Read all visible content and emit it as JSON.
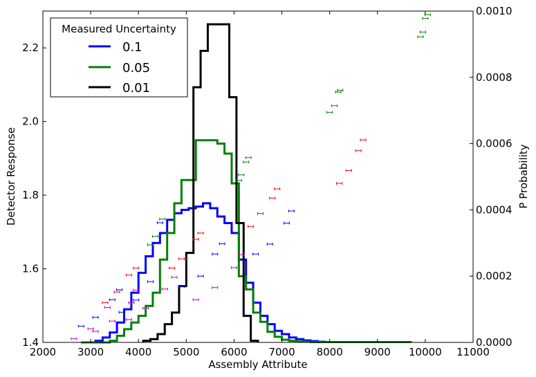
{
  "chart_data": {
    "type": "line",
    "title": "",
    "xlabel": "Assembly Attribute",
    "ylabel_left": "Detector Response",
    "ylabel_right": "P Probability",
    "xlim": [
      2000,
      11000
    ],
    "ylim_left": [
      1.4,
      2.3
    ],
    "ylim_right": [
      0,
      0.001
    ],
    "x_ticks": [
      2000,
      3000,
      4000,
      5000,
      6000,
      7000,
      8000,
      9000,
      10000,
      11000
    ],
    "y_left_ticks": [
      1.4,
      1.6,
      1.8,
      2.0,
      2.2
    ],
    "y_right_ticks": [
      0.0,
      0.0002,
      0.0004,
      0.0006,
      0.0008,
      0.001
    ],
    "x_tick_labels": [
      "2000",
      "3000",
      "4000",
      "5000",
      "6000",
      "7000",
      "8000",
      "9000",
      "10000",
      "11000"
    ],
    "y_left_tick_labels": [
      "1.4",
      "1.6",
      "1.8",
      "2.0",
      "2.2"
    ],
    "y_right_tick_labels": [
      "0.0000",
      "0.0002",
      "0.0004",
      "0.0006",
      "0.0008",
      "0.0010"
    ],
    "grid": false,
    "legend": {
      "title": "Measured Uncertainty",
      "position": "top-left",
      "entries": [
        {
          "label": "0.1",
          "color": "#0000ff"
        },
        {
          "label": "0.05",
          "color": "#008000"
        },
        {
          "label": "0.01",
          "color": "#000000"
        }
      ]
    },
    "series": [
      {
        "name": "0.1",
        "color": "#0000ff",
        "axis": "right",
        "style": "step",
        "bin_edges": [
          2800,
          2950,
          3100,
          3250,
          3400,
          3550,
          3700,
          3850,
          4000,
          4150,
          4300,
          4450,
          4600,
          4750,
          4900,
          5050,
          5200,
          5350,
          5500,
          5650,
          5800,
          5950,
          6100,
          6250,
          6400,
          6550,
          6700,
          6850,
          7000,
          7150,
          7300,
          7450,
          7600,
          7750,
          7900,
          8050
        ],
        "values": [
          0.0,
          0.0,
          5e-06,
          1.5e-05,
          3e-05,
          6e-05,
          0.0001,
          0.00015,
          0.00021,
          0.00026,
          0.0003,
          0.00033,
          0.00037,
          0.00039,
          0.0004,
          0.000405,
          0.00041,
          0.00042,
          0.000405,
          0.00038,
          0.00036,
          0.00033,
          0.00025,
          0.00018,
          0.00012,
          8e-05,
          5.5e-05,
          3.5e-05,
          2.5e-05,
          1.5e-05,
          1e-05,
          6e-06,
          4e-06,
          2e-06,
          1e-06
        ]
      },
      {
        "name": "0.05",
        "color": "#008000",
        "axis": "right",
        "style": "step",
        "bin_edges": [
          2800,
          3400,
          3550,
          3700,
          3850,
          4000,
          4150,
          4300,
          4450,
          4600,
          4750,
          4900,
          5050,
          5200,
          5350,
          5500,
          5650,
          5800,
          5950,
          6100,
          6250,
          6400,
          6550,
          6700,
          6850,
          7000,
          7150,
          7300,
          7450,
          7600,
          9700
        ],
        "values": [
          0.0,
          5e-06,
          2e-05,
          4e-05,
          6e-05,
          8e-05,
          0.00011,
          0.00015,
          0.00025,
          0.00033,
          0.00042,
          0.00049,
          0.00049,
          0.00061,
          0.00061,
          0.00061,
          0.0006,
          0.00057,
          0.00048,
          0.0002,
          0.00016,
          9e-05,
          6.2e-05,
          3.2e-05,
          1.7e-05,
          8e-06,
          5e-06,
          3e-06,
          2e-06,
          1e-06
        ]
      },
      {
        "name": "0.01",
        "color": "#000000",
        "axis": "right",
        "style": "step",
        "bin_edges": [
          4100,
          4250,
          4400,
          4550,
          4700,
          4850,
          5000,
          5150,
          5300,
          5450,
          5600,
          5750,
          5900,
          6050,
          6200,
          6350,
          6500
        ],
        "values": [
          5e-06,
          1e-05,
          2.5e-05,
          5.5e-05,
          9e-05,
          0.00017,
          0.00027,
          0.00077,
          0.00088,
          0.00096,
          0.00096,
          0.00096,
          0.00074,
          0.00036,
          8e-05,
          5e-06
        ]
      }
    ],
    "scatter_points": [
      {
        "color": "#0000ff",
        "axis": "left",
        "points": [
          [
            2800,
            1.444
          ],
          [
            3100,
            1.468
          ],
          [
            3450,
            1.516
          ],
          [
            3600,
            1.543
          ],
          [
            3650,
            1.482
          ],
          [
            3950,
            1.515
          ],
          [
            4250,
            1.565
          ],
          [
            4450,
            1.725
          ],
          [
            4900,
            1.552
          ],
          [
            5300,
            1.58
          ],
          [
            5600,
            1.64
          ],
          [
            5750,
            1.668
          ],
          [
            6450,
            1.64
          ],
          [
            6750,
            1.667
          ],
          [
            7100,
            1.724
          ],
          [
            7200,
            1.757
          ]
        ]
      },
      {
        "color": "#008000",
        "axis": "left",
        "points": [
          [
            4250,
            1.665
          ],
          [
            4350,
            1.688
          ],
          [
            4500,
            1.735
          ],
          [
            6100,
            1.84
          ],
          [
            6150,
            1.855
          ],
          [
            6250,
            1.89
          ],
          [
            6300,
            1.902
          ],
          [
            8000,
            2.025
          ],
          [
            8100,
            2.043
          ],
          [
            8180,
            2.08
          ],
          [
            8220,
            2.085
          ],
          [
            9900,
            2.23
          ],
          [
            9950,
            2.243
          ],
          [
            10000,
            2.28
          ],
          [
            10050,
            2.29
          ]
        ]
      },
      {
        "color": "#ff0000",
        "axis": "left",
        "points": [
          [
            3300,
            1.508
          ],
          [
            3550,
            1.537
          ],
          [
            3800,
            1.583
          ],
          [
            3950,
            1.602
          ],
          [
            4700,
            1.602
          ],
          [
            4900,
            1.627
          ],
          [
            5200,
            1.68
          ],
          [
            5300,
            1.697
          ],
          [
            6350,
            1.715
          ],
          [
            6550,
            1.75
          ],
          [
            6800,
            1.792
          ],
          [
            6900,
            1.817
          ],
          [
            8200,
            1.832
          ],
          [
            8400,
            1.867
          ],
          [
            8600,
            1.921
          ],
          [
            8700,
            1.95
          ]
        ]
      },
      {
        "color": "#c000c0",
        "axis": "left",
        "points": [
          [
            2650,
            1.41
          ],
          [
            3000,
            1.437
          ],
          [
            3100,
            1.43
          ],
          [
            3350,
            1.495
          ],
          [
            3450,
            1.458
          ],
          [
            3800,
            1.462
          ],
          [
            3850,
            1.508
          ],
          [
            3950,
            1.542
          ],
          [
            4150,
            1.493
          ],
          [
            4550,
            1.545
          ],
          [
            4750,
            1.577
          ],
          [
            5200,
            1.516
          ],
          [
            5600,
            1.549
          ],
          [
            6000,
            1.603
          ],
          [
            6150,
            1.638
          ]
        ]
      }
    ]
  }
}
